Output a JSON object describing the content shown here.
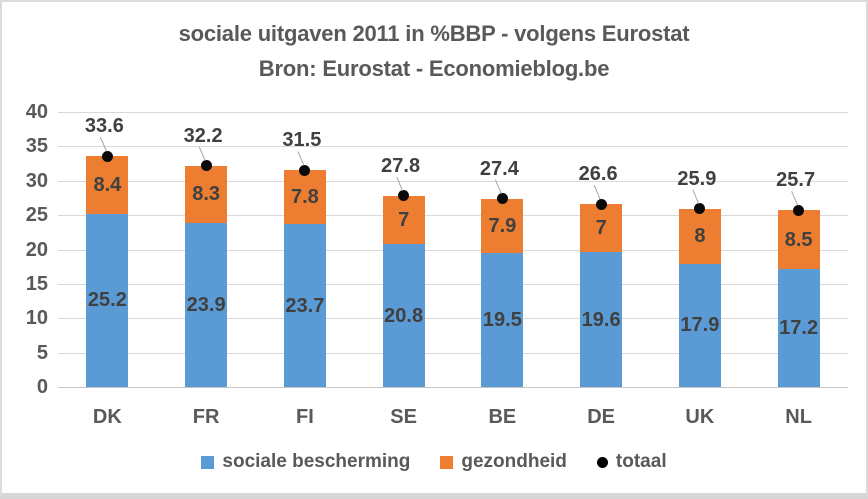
{
  "title": {
    "line1": "sociale uitgaven 2011 in %BBP - volgens Eurostat",
    "line2": "Bron: Eurostat - Economieblog.be"
  },
  "chart_data": {
    "type": "bar",
    "stacked": true,
    "title": "sociale uitgaven 2011 in %BBP - volgens Eurostat",
    "subtitle": "Bron: Eurostat - Economieblog.be",
    "categories": [
      "DK",
      "FR",
      "FI",
      "SE",
      "BE",
      "DE",
      "UK",
      "NL"
    ],
    "series": [
      {
        "name": "sociale bescherming",
        "type": "bar",
        "color": "#5B9BD5",
        "values": [
          25.2,
          23.9,
          23.7,
          20.8,
          19.5,
          19.6,
          17.9,
          17.2
        ]
      },
      {
        "name": "gezondheid",
        "type": "bar",
        "color": "#ED7D31",
        "values": [
          8.4,
          8.3,
          7.8,
          7,
          7.9,
          7,
          8,
          8.5
        ]
      },
      {
        "name": "totaal",
        "type": "scatter",
        "color": "#000000",
        "values": [
          33.6,
          32.2,
          31.5,
          27.8,
          27.4,
          26.6,
          25.9,
          25.7
        ]
      }
    ],
    "xlabel": "",
    "ylabel": "",
    "ylim": [
      0,
      40
    ],
    "yticks": [
      0,
      5,
      10,
      15,
      20,
      25,
      30,
      35,
      40
    ],
    "grid": true,
    "data_labels": true,
    "legend_position": "bottom"
  },
  "legend": {
    "items": [
      {
        "label": "sociale bescherming",
        "marker": "square",
        "color": "#5B9BD5"
      },
      {
        "label": "gezondheid",
        "marker": "square",
        "color": "#ED7D31"
      },
      {
        "label": "totaal",
        "marker": "circle",
        "color": "#000000"
      }
    ]
  },
  "colors": {
    "background": "#FFFFFF",
    "grid": "#D9D9D9",
    "axis_text": "#595959",
    "data_label_text": "#404040",
    "title_text": "#595959",
    "leader_line": "#A6A6A6",
    "frame_border": "#DBDBDB"
  }
}
